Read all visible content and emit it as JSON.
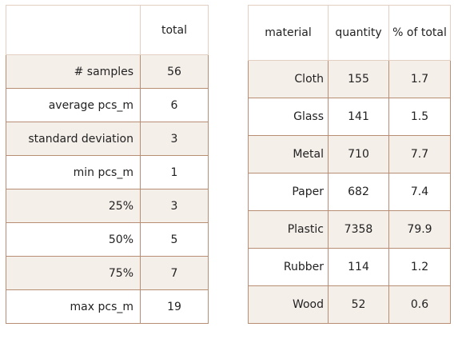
{
  "summary_table": {
    "header": {
      "label": "",
      "value": "total"
    },
    "rows": [
      {
        "label": "# samples",
        "value": "56"
      },
      {
        "label": "average pcs_m",
        "value": "6"
      },
      {
        "label": "standard deviation",
        "value": "3"
      },
      {
        "label": "min pcs_m",
        "value": "1"
      },
      {
        "label": "25%",
        "value": "3"
      },
      {
        "label": "50%",
        "value": "5"
      },
      {
        "label": "75%",
        "value": "7"
      },
      {
        "label": "max pcs_m",
        "value": "19"
      }
    ]
  },
  "material_table": {
    "headers": [
      "material",
      "quantity",
      "% of total"
    ],
    "rows": [
      {
        "material": "Cloth",
        "quantity": "155",
        "pct": "1.7"
      },
      {
        "material": "Glass",
        "quantity": "141",
        "pct": "1.5"
      },
      {
        "material": "Metal",
        "quantity": "710",
        "pct": "7.7"
      },
      {
        "material": "Paper",
        "quantity": "682",
        "pct": "7.4"
      },
      {
        "material": "Plastic",
        "quantity": "7358",
        "pct": "79.9"
      },
      {
        "material": "Rubber",
        "quantity": "114",
        "pct": "1.2"
      },
      {
        "material": "Wood",
        "quantity": "52",
        "pct": "0.6"
      }
    ]
  },
  "colors": {
    "border": "#b78e74",
    "stripe": "#f5efea",
    "text": "#222222"
  }
}
